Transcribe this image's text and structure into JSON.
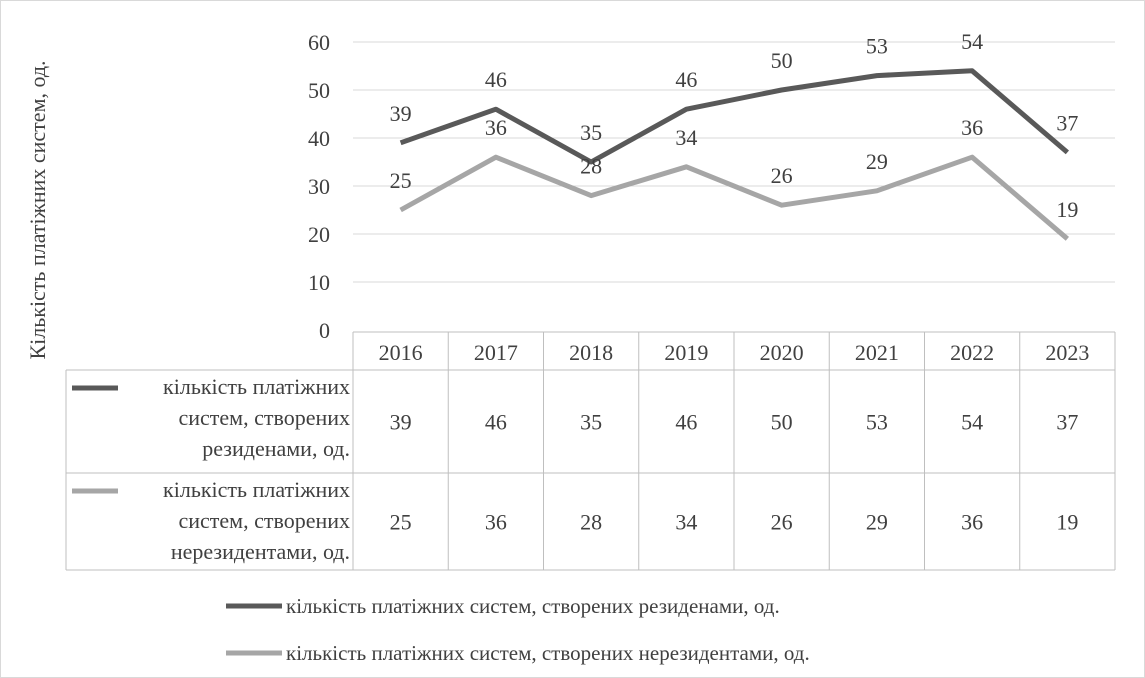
{
  "chart_data": {
    "type": "line",
    "ylabel": "Кількість платіжних систем, од.",
    "categories": [
      "2016",
      "2017",
      "2018",
      "2019",
      "2020",
      "2021",
      "2022",
      "2023"
    ],
    "ylim": [
      0,
      60
    ],
    "yticks": [
      0,
      10,
      20,
      30,
      40,
      50,
      60
    ],
    "grid": true,
    "legend_position": "bottom",
    "data_table": true,
    "series": [
      {
        "name": "кількість платіжних систем, створених резиденами, од.",
        "table_label_lines": [
          "кількість платіжних",
          "систем, створених",
          "резиденами, од."
        ],
        "color": "#595959",
        "values": [
          39,
          46,
          35,
          46,
          50,
          53,
          54,
          37
        ]
      },
      {
        "name": "кількість платіжних систем, створених нерезидентами, од.",
        "table_label_lines": [
          "кількість платіжних",
          "систем, створених",
          "нерезидентами, од."
        ],
        "color": "#a6a6a6",
        "values": [
          25,
          36,
          28,
          34,
          26,
          29,
          36,
          19
        ]
      }
    ]
  }
}
